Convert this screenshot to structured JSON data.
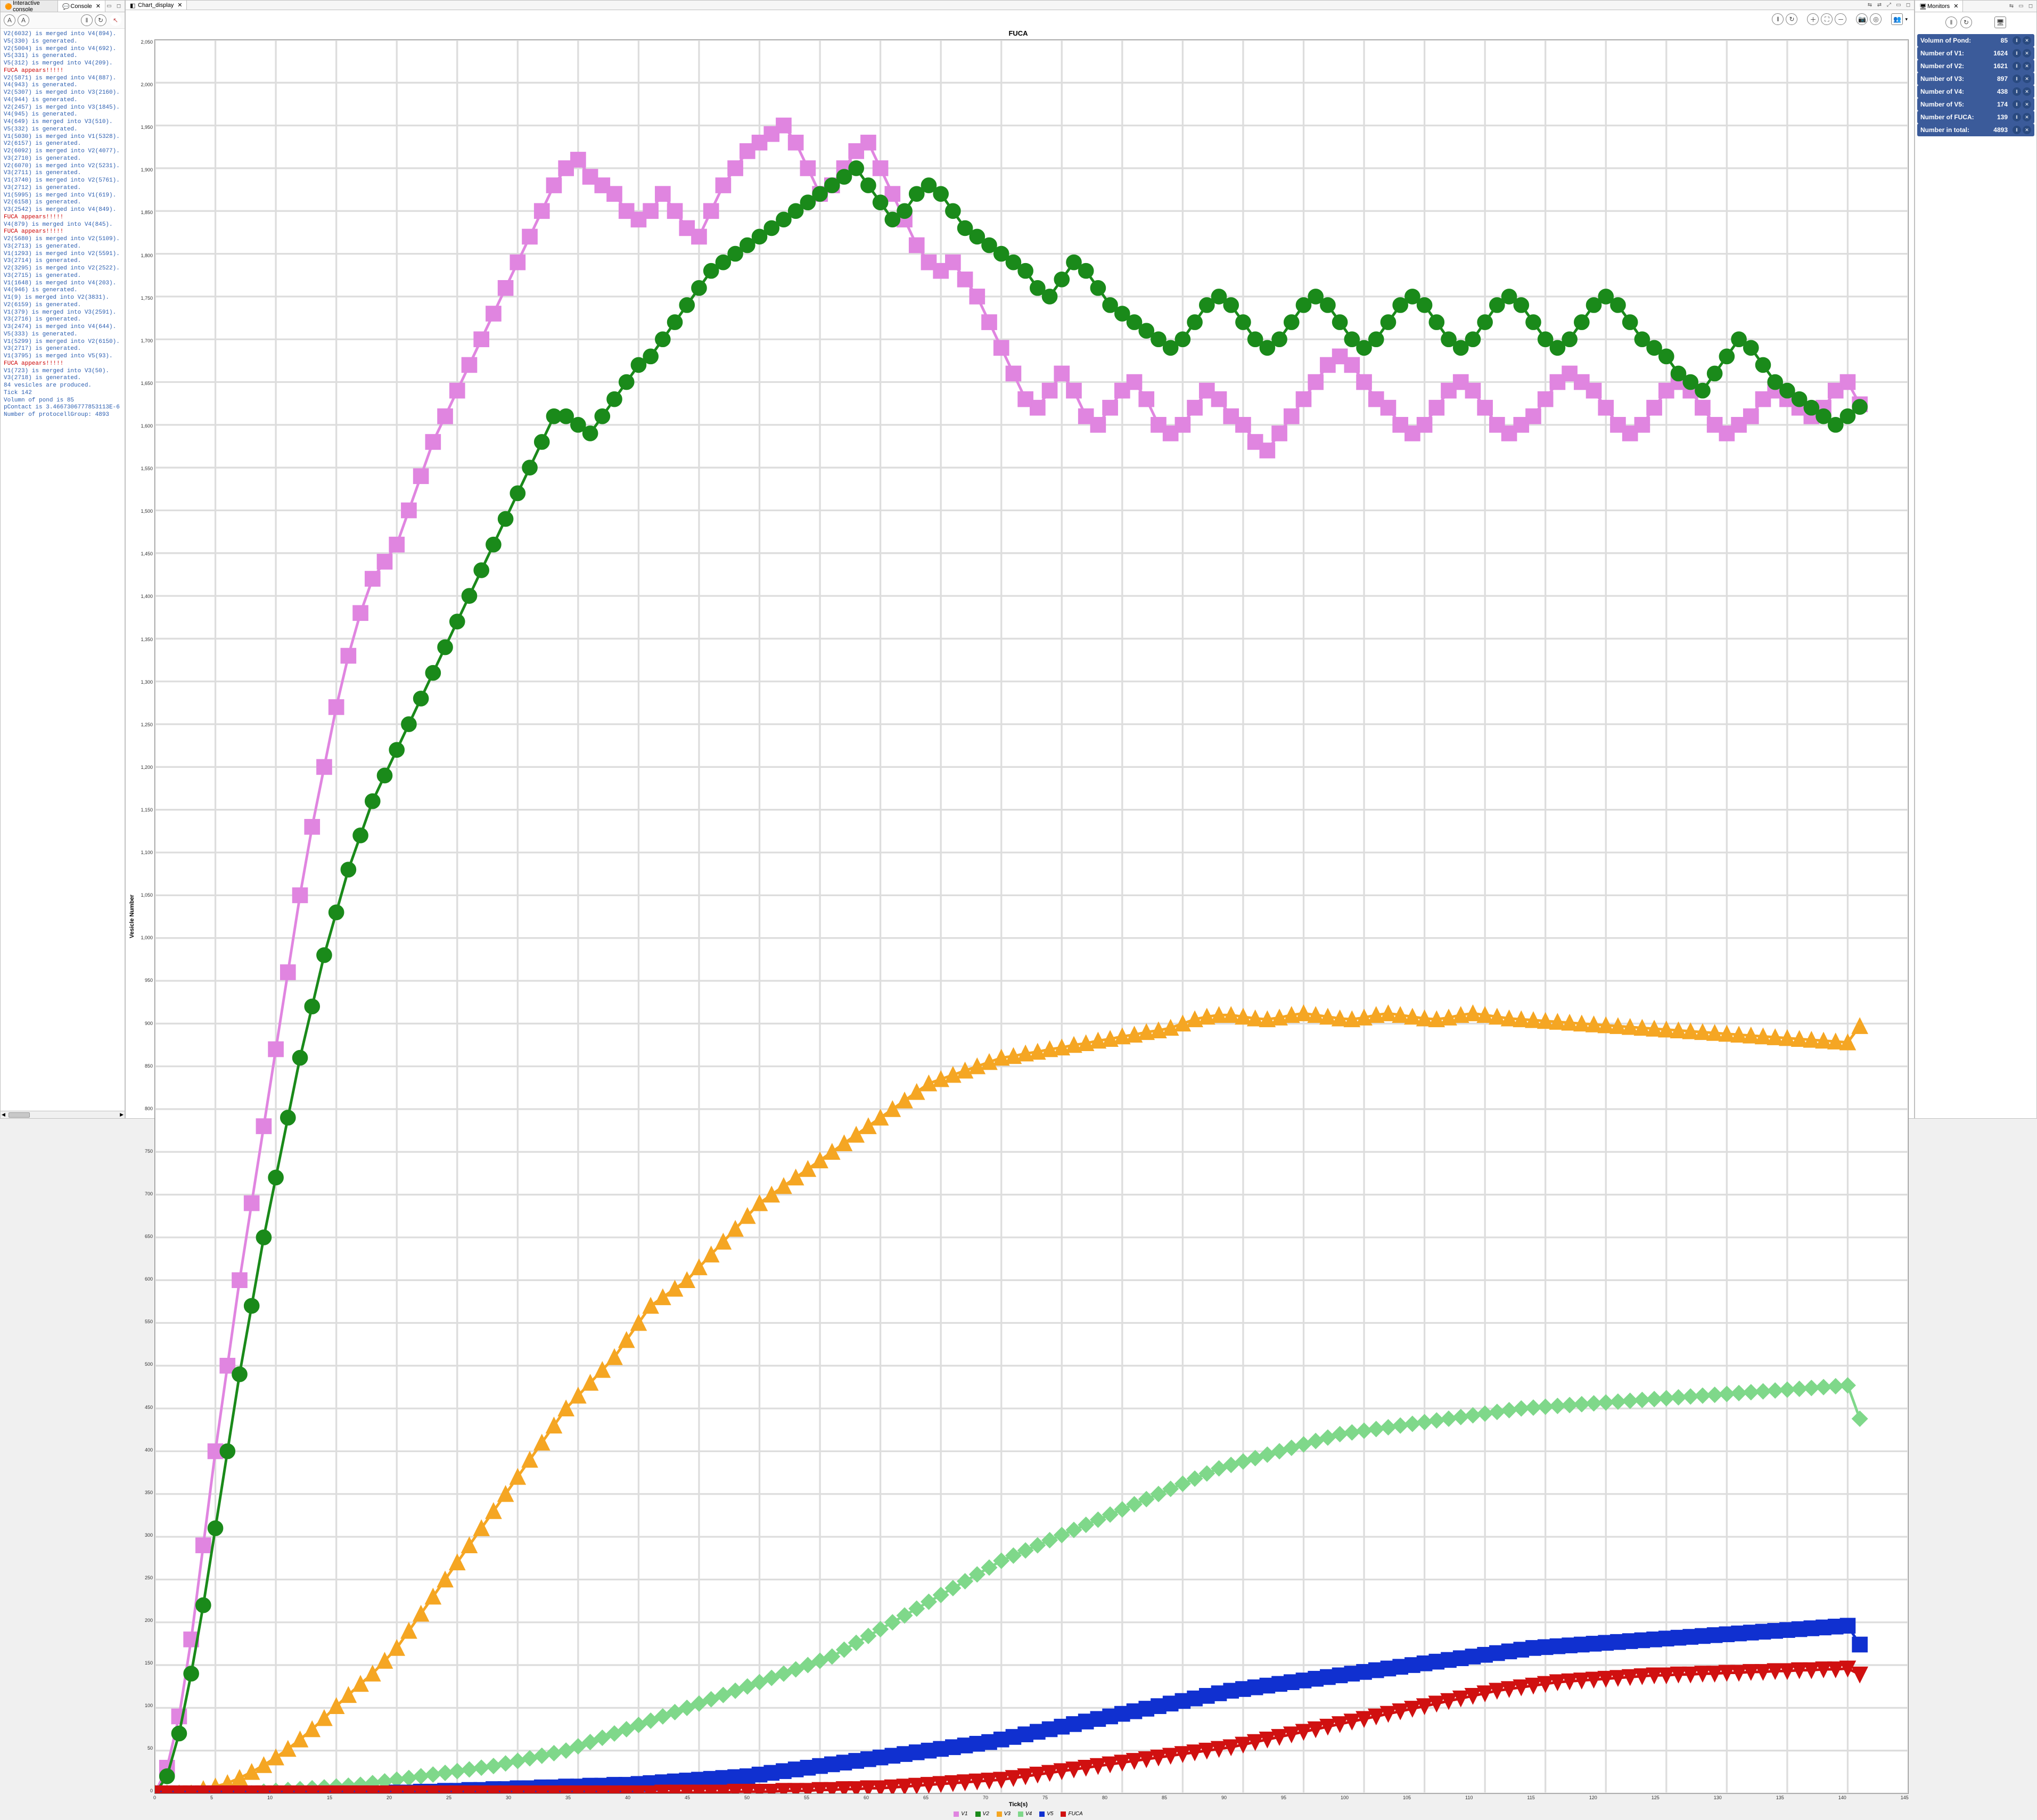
{
  "left_panel": {
    "tabs": [
      {
        "label": "Interactive console",
        "active": false
      },
      {
        "label": "Console",
        "active": true
      }
    ],
    "toolbar_icons": [
      "A",
      "A",
      "‖",
      "↻"
    ],
    "lines": [
      {
        "t": "V2(6032) is merged into V4(894).",
        "c": "link"
      },
      {
        "t": "V5(330) is generated.",
        "c": "link"
      },
      {
        "t": "V2(5004) is merged into V4(692).",
        "c": "link"
      },
      {
        "t": "V5(331) is generated.",
        "c": "link"
      },
      {
        "t": "V5(312) is merged into V4(209).",
        "c": "link"
      },
      {
        "t": "FUCA appears!!!!!",
        "c": "red"
      },
      {
        "t": "V2(5871) is merged into V4(887).",
        "c": "link"
      },
      {
        "t": "V4(943) is generated.",
        "c": "link"
      },
      {
        "t": "V2(5307) is merged into V3(2160).",
        "c": "link"
      },
      {
        "t": "V4(944) is generated.",
        "c": "link"
      },
      {
        "t": "V2(2457) is merged into V3(1845).",
        "c": "link"
      },
      {
        "t": "V4(945) is generated.",
        "c": "link"
      },
      {
        "t": "V4(649) is merged into V3(510).",
        "c": "link"
      },
      {
        "t": "V5(332) is generated.",
        "c": "link"
      },
      {
        "t": "V1(5030) is merged into V1(5328).",
        "c": "link"
      },
      {
        "t": "V2(6157) is generated.",
        "c": "link"
      },
      {
        "t": "V2(6092) is merged into V2(4077).",
        "c": "link"
      },
      {
        "t": "V3(2710) is generated.",
        "c": "link"
      },
      {
        "t": "V2(6070) is merged into V2(5231).",
        "c": "link"
      },
      {
        "t": "V3(2711) is generated.",
        "c": "link"
      },
      {
        "t": "V1(3740) is merged into V2(5761).",
        "c": "link"
      },
      {
        "t": "V3(2712) is generated.",
        "c": "link"
      },
      {
        "t": "V1(5995) is merged into V1(619).",
        "c": "link"
      },
      {
        "t": "V2(6158) is generated.",
        "c": "link"
      },
      {
        "t": "V3(2542) is merged into V4(849).",
        "c": "link"
      },
      {
        "t": "FUCA appears!!!!!",
        "c": "red"
      },
      {
        "t": "V4(879) is merged into V4(845).",
        "c": "link"
      },
      {
        "t": "FUCA appears!!!!!",
        "c": "red"
      },
      {
        "t": "V2(5680) is merged into V2(5109).",
        "c": "link"
      },
      {
        "t": "V3(2713) is generated.",
        "c": "link"
      },
      {
        "t": "V1(1293) is merged into V2(5591).",
        "c": "link"
      },
      {
        "t": "V3(2714) is generated.",
        "c": "link"
      },
      {
        "t": "V2(3295) is merged into V2(2522).",
        "c": "link"
      },
      {
        "t": "V3(2715) is generated.",
        "c": "link"
      },
      {
        "t": "V1(1648) is merged into V4(203).",
        "c": "link"
      },
      {
        "t": "V4(946) is generated.",
        "c": "link"
      },
      {
        "t": "V1(9) is merged into V2(3831).",
        "c": "link"
      },
      {
        "t": "V2(6159) is generated.",
        "c": "link"
      },
      {
        "t": "V1(379) is merged into V3(2591).",
        "c": "link"
      },
      {
        "t": "V3(2716) is generated.",
        "c": "link"
      },
      {
        "t": "V3(2474) is merged into V4(644).",
        "c": "link"
      },
      {
        "t": "V5(333) is generated.",
        "c": "link"
      },
      {
        "t": "V1(5299) is merged into V2(6150).",
        "c": "link"
      },
      {
        "t": "V3(2717) is generated.",
        "c": "link"
      },
      {
        "t": "V1(3795) is merged into V5(93).",
        "c": "link"
      },
      {
        "t": "FUCA appears!!!!!",
        "c": "red"
      },
      {
        "t": "V1(723) is merged into V3(50).",
        "c": "link"
      },
      {
        "t": "V3(2718) is generated.",
        "c": "link"
      },
      {
        "t": "84 vesicles are produced.",
        "c": "link"
      },
      {
        "t": "",
        "c": "link"
      },
      {
        "t": "Tick 142",
        "c": "link"
      },
      {
        "t": "",
        "c": "link"
      },
      {
        "t": "Volumn of pond is 85",
        "c": "link"
      },
      {
        "t": "pContact is 3.4667306777853113E-6",
        "c": "link"
      },
      {
        "t": "Number of protocellGroup: 4893",
        "c": "link"
      }
    ]
  },
  "center_panel": {
    "tab_label": "Chart_display",
    "chart": {
      "title": "FUCA",
      "xlabel": "Tick(s)",
      "ylabel": "Vesicle Number",
      "xmin": 0,
      "xmax": 145,
      "xtick_step": 5,
      "ymin": 0,
      "ymax": 2050,
      "ytick_step": 50,
      "grid_color": "#dddddd",
      "background": "#ffffff",
      "legend": [
        {
          "name": "V1",
          "color": "#e085e0",
          "marker": "square"
        },
        {
          "name": "V2",
          "color": "#1a8a1a",
          "marker": "circle"
        },
        {
          "name": "V3",
          "color": "#f5a623",
          "marker": "triangle"
        },
        {
          "name": "V4",
          "color": "#7fd88a",
          "marker": "diamond"
        },
        {
          "name": "V5",
          "color": "#1030d0",
          "marker": "square"
        },
        {
          "name": "FUCA",
          "color": "#d01010",
          "marker": "triangle-down"
        }
      ],
      "series": {
        "V1": [
          0,
          30,
          90,
          180,
          290,
          400,
          500,
          600,
          690,
          780,
          870,
          960,
          1050,
          1130,
          1200,
          1270,
          1330,
          1380,
          1420,
          1440,
          1460,
          1500,
          1540,
          1580,
          1610,
          1640,
          1670,
          1700,
          1730,
          1760,
          1790,
          1820,
          1850,
          1880,
          1900,
          1910,
          1890,
          1880,
          1870,
          1850,
          1840,
          1850,
          1870,
          1850,
          1830,
          1820,
          1850,
          1880,
          1900,
          1920,
          1930,
          1940,
          1950,
          1930,
          1900,
          1870,
          1880,
          1900,
          1920,
          1930,
          1900,
          1870,
          1840,
          1810,
          1790,
          1780,
          1790,
          1770,
          1750,
          1720,
          1690,
          1660,
          1630,
          1620,
          1640,
          1660,
          1640,
          1610,
          1600,
          1620,
          1640,
          1650,
          1630,
          1600,
          1590,
          1600,
          1620,
          1640,
          1630,
          1610,
          1600,
          1580,
          1570,
          1590,
          1610,
          1630,
          1650,
          1670,
          1680,
          1670,
          1650,
          1630,
          1620,
          1600,
          1590,
          1600,
          1620,
          1640,
          1650,
          1640,
          1620,
          1600,
          1590,
          1600,
          1610,
          1630,
          1650,
          1660,
          1650,
          1640,
          1620,
          1600,
          1590,
          1600,
          1620,
          1640,
          1650,
          1640,
          1620,
          1600,
          1590,
          1600,
          1610,
          1630,
          1640,
          1630,
          1620,
          1610,
          1620,
          1640,
          1650,
          1624
        ],
        "V2": [
          0,
          20,
          70,
          140,
          220,
          310,
          400,
          490,
          570,
          650,
          720,
          790,
          860,
          920,
          980,
          1030,
          1080,
          1120,
          1160,
          1190,
          1220,
          1250,
          1280,
          1310,
          1340,
          1370,
          1400,
          1430,
          1460,
          1490,
          1520,
          1550,
          1580,
          1610,
          1610,
          1600,
          1590,
          1610,
          1630,
          1650,
          1670,
          1680,
          1700,
          1720,
          1740,
          1760,
          1780,
          1790,
          1800,
          1810,
          1820,
          1830,
          1840,
          1850,
          1860,
          1870,
          1880,
          1890,
          1900,
          1880,
          1860,
          1840,
          1850,
          1870,
          1880,
          1870,
          1850,
          1830,
          1820,
          1810,
          1800,
          1790,
          1780,
          1760,
          1750,
          1770,
          1790,
          1780,
          1760,
          1740,
          1730,
          1720,
          1710,
          1700,
          1690,
          1700,
          1720,
          1740,
          1750,
          1740,
          1720,
          1700,
          1690,
          1700,
          1720,
          1740,
          1750,
          1740,
          1720,
          1700,
          1690,
          1700,
          1720,
          1740,
          1750,
          1740,
          1720,
          1700,
          1690,
          1700,
          1720,
          1740,
          1750,
          1740,
          1720,
          1700,
          1690,
          1700,
          1720,
          1740,
          1750,
          1740,
          1720,
          1700,
          1690,
          1680,
          1660,
          1650,
          1640,
          1660,
          1680,
          1700,
          1690,
          1670,
          1650,
          1640,
          1630,
          1620,
          1610,
          1600,
          1610,
          1621
        ],
        "V3": [
          0,
          0,
          0,
          0,
          5,
          8,
          12,
          18,
          25,
          33,
          42,
          52,
          63,
          75,
          88,
          102,
          115,
          128,
          140,
          155,
          170,
          190,
          210,
          230,
          250,
          270,
          290,
          310,
          330,
          350,
          370,
          390,
          410,
          430,
          450,
          465,
          480,
          495,
          510,
          530,
          550,
          570,
          580,
          590,
          600,
          615,
          630,
          645,
          660,
          675,
          690,
          700,
          710,
          720,
          730,
          740,
          750,
          760,
          770,
          780,
          790,
          800,
          810,
          820,
          830,
          835,
          840,
          845,
          850,
          855,
          860,
          862,
          865,
          867,
          870,
          872,
          875,
          877,
          880,
          882,
          885,
          887,
          890,
          892,
          895,
          900,
          905,
          908,
          910,
          910,
          908,
          906,
          905,
          907,
          910,
          912,
          910,
          908,
          906,
          905,
          907,
          910,
          912,
          910,
          908,
          906,
          905,
          907,
          910,
          912,
          910,
          908,
          906,
          905,
          904,
          903,
          902,
          901,
          900,
          899,
          898,
          897,
          896,
          895,
          894,
          893,
          892,
          891,
          890,
          889,
          888,
          887,
          886,
          885,
          884,
          883,
          882,
          881,
          880,
          879,
          878,
          897
        ],
        "V4": [
          0,
          0,
          0,
          0,
          0,
          0,
          0,
          0,
          0,
          2,
          3,
          4,
          5,
          6,
          7,
          8,
          9,
          10,
          12,
          14,
          16,
          18,
          20,
          22,
          24,
          26,
          28,
          30,
          32,
          35,
          38,
          41,
          44,
          47,
          50,
          55,
          60,
          65,
          70,
          75,
          80,
          85,
          90,
          95,
          100,
          105,
          110,
          115,
          120,
          125,
          130,
          135,
          140,
          145,
          150,
          155,
          160,
          168,
          176,
          184,
          192,
          200,
          208,
          216,
          224,
          232,
          240,
          248,
          256,
          264,
          272,
          278,
          284,
          290,
          296,
          302,
          308,
          314,
          320,
          326,
          332,
          338,
          344,
          350,
          356,
          362,
          368,
          374,
          380,
          384,
          388,
          392,
          396,
          400,
          404,
          408,
          412,
          416,
          420,
          422,
          424,
          426,
          428,
          430,
          432,
          434,
          436,
          438,
          440,
          442,
          444,
          446,
          448,
          450,
          451,
          452,
          453,
          454,
          455,
          456,
          457,
          458,
          459,
          460,
          461,
          462,
          463,
          464,
          465,
          466,
          467,
          468,
          469,
          470,
          471,
          472,
          473,
          474,
          475,
          476,
          477,
          438
        ],
        "V5": [
          0,
          0,
          0,
          0,
          0,
          0,
          0,
          0,
          0,
          0,
          0,
          0,
          0,
          0,
          0,
          0,
          0,
          0,
          0,
          0,
          1,
          1,
          2,
          2,
          3,
          3,
          4,
          4,
          5,
          5,
          6,
          6,
          7,
          7,
          8,
          8,
          9,
          9,
          10,
          10,
          11,
          12,
          13,
          14,
          15,
          16,
          17,
          18,
          19,
          20,
          22,
          24,
          26,
          28,
          30,
          32,
          34,
          36,
          38,
          40,
          42,
          44,
          46,
          48,
          50,
          52,
          54,
          56,
          58,
          60,
          63,
          66,
          69,
          72,
          75,
          78,
          81,
          84,
          87,
          90,
          93,
          96,
          99,
          102,
          105,
          108,
          111,
          114,
          117,
          120,
          122,
          124,
          126,
          128,
          130,
          132,
          134,
          136,
          138,
          140,
          142,
          144,
          146,
          148,
          150,
          152,
          154,
          156,
          158,
          160,
          162,
          164,
          166,
          168,
          170,
          171,
          172,
          173,
          174,
          175,
          176,
          177,
          178,
          179,
          180,
          181,
          182,
          183,
          184,
          185,
          186,
          187,
          188,
          189,
          190,
          191,
          192,
          193,
          194,
          195,
          196,
          174
        ],
        "FUCA": [
          0,
          0,
          0,
          0,
          0,
          0,
          0,
          0,
          0,
          0,
          0,
          0,
          0,
          0,
          0,
          0,
          0,
          0,
          0,
          0,
          0,
          0,
          0,
          0,
          0,
          0,
          0,
          0,
          0,
          0,
          0,
          0,
          0,
          0,
          0,
          0,
          0,
          0,
          0,
          0,
          0,
          0,
          1,
          1,
          1,
          1,
          1,
          1,
          2,
          2,
          2,
          2,
          3,
          3,
          3,
          4,
          4,
          5,
          5,
          6,
          6,
          7,
          8,
          9,
          10,
          11,
          12,
          13,
          14,
          15,
          16,
          18,
          20,
          22,
          24,
          26,
          28,
          30,
          32,
          34,
          36,
          38,
          40,
          42,
          44,
          46,
          48,
          50,
          52,
          54,
          57,
          60,
          63,
          66,
          69,
          72,
          75,
          78,
          81,
          84,
          87,
          90,
          93,
          96,
          99,
          102,
          105,
          108,
          111,
          114,
          117,
          120,
          122,
          124,
          126,
          128,
          130,
          131,
          132,
          133,
          134,
          135,
          136,
          137,
          138,
          138,
          139,
          139,
          140,
          140,
          141,
          141,
          142,
          142,
          143,
          143,
          144,
          144,
          145,
          145,
          146,
          139
        ]
      }
    }
  },
  "right_panel": {
    "tab_label": "Monitors",
    "monitors": [
      {
        "label": "Volumn of Pond:",
        "value": "85"
      },
      {
        "label": "Number of V1:",
        "value": "1624"
      },
      {
        "label": "Number of V2:",
        "value": "1621"
      },
      {
        "label": "Number of V3:",
        "value": "897"
      },
      {
        "label": "Number of V4:",
        "value": "438"
      },
      {
        "label": "Number of V5:",
        "value": "174"
      },
      {
        "label": "Number of FUCA:",
        "value": "139"
      },
      {
        "label": "Number in total:",
        "value": "4893"
      }
    ]
  }
}
